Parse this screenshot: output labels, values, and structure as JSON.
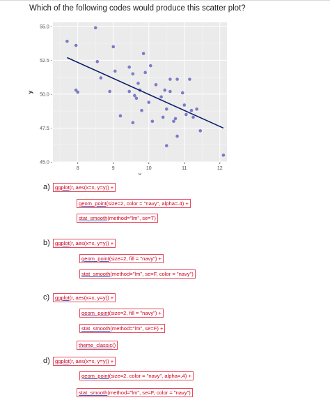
{
  "question": "Which of the following codes would produce this scatter plot?",
  "chart_data": {
    "type": "scatter",
    "xlabel": "x",
    "ylabel": "y",
    "xlim": [
      7.3,
      12.2
    ],
    "ylim": [
      45.0,
      55.3
    ],
    "x_ticks": [
      8,
      9,
      10,
      11,
      12
    ],
    "y_ticks": [
      45.0,
      47.5,
      50.0,
      52.5,
      55.0
    ],
    "y_tick_labels": [
      "45.0 -",
      "47.5 -",
      "50.0 -",
      "52.5 -",
      "55.0 -"
    ],
    "point_color": "#7b7bc7",
    "line_color": "#0b1f6b",
    "panel_color": "#ebebeb",
    "points": [
      [
        7.7,
        53.9
      ],
      [
        7.95,
        53.6
      ],
      [
        7.95,
        50.3
      ],
      [
        8.0,
        50.15
      ],
      [
        8.5,
        54.9
      ],
      [
        8.55,
        52.4
      ],
      [
        8.65,
        51.2
      ],
      [
        8.9,
        50.2
      ],
      [
        9.0,
        53.5
      ],
      [
        9.05,
        51.7
      ],
      [
        9.2,
        48.4
      ],
      [
        9.45,
        52.0
      ],
      [
        9.45,
        50.2
      ],
      [
        9.55,
        47.9
      ],
      [
        9.55,
        51.5
      ],
      [
        9.65,
        49.7
      ],
      [
        9.6,
        49.9
      ],
      [
        9.7,
        50.8
      ],
      [
        9.75,
        50.3
      ],
      [
        9.8,
        48.8
      ],
      [
        9.85,
        53.0
      ],
      [
        9.9,
        51.6
      ],
      [
        10.0,
        49.4
      ],
      [
        10.05,
        52.1
      ],
      [
        10.1,
        48.0
      ],
      [
        10.2,
        50.7
      ],
      [
        10.35,
        49.8
      ],
      [
        10.4,
        48.3
      ],
      [
        10.45,
        50.3
      ],
      [
        10.5,
        48.9
      ],
      [
        10.5,
        46.2
      ],
      [
        10.6,
        50.2
      ],
      [
        10.6,
        51.1
      ],
      [
        10.7,
        48.0
      ],
      [
        10.75,
        48.2
      ],
      [
        10.8,
        51.1
      ],
      [
        10.8,
        46.9
      ],
      [
        10.95,
        50.1
      ],
      [
        11.0,
        49.2
      ],
      [
        11.05,
        48.5
      ],
      [
        11.15,
        51.1
      ],
      [
        11.2,
        48.8
      ],
      [
        11.25,
        48.3
      ],
      [
        11.35,
        48.9
      ],
      [
        11.45,
        47.3
      ],
      [
        12.1,
        45.5
      ]
    ],
    "fit_line": [
      [
        7.7,
        52.7
      ],
      [
        12.1,
        47.5
      ]
    ]
  },
  "options": [
    {
      "letter": "a)",
      "lines": [
        {
          "fn": "ggplot",
          "rest": "(r, aes(x=x, y=y)) +"
        },
        {
          "fn": "geom_point",
          "rest": "(size=2, color = \"navy\", alpha=.4) +"
        },
        {
          "fn": "stat_smooth",
          "rest": "(method=\"lm\", se=T)"
        }
      ]
    },
    {
      "letter": "b)",
      "lines": [
        {
          "fn": "ggplot",
          "rest": "(r, aes(x=x, y=y)) +"
        },
        {
          "fn": "geom_point",
          "rest": "(size=2, fill = \"navy\") +"
        },
        {
          "fn": "stat_smooth",
          "rest": "(method=\"lm\", se=F, color = \"navy\")"
        }
      ]
    },
    {
      "letter": "c)",
      "lines": [
        {
          "fn": "ggplot",
          "rest": "(r, aes(x=x, y=y)) +"
        },
        {
          "fn": "geom_point",
          "rest": "(size=2, fill = \"navy\") +"
        },
        {
          "fn": "stat_smooth",
          "rest": "(method=\"lm\", se=F) +"
        },
        {
          "fn": "theme_classic",
          "rest": "()"
        }
      ]
    },
    {
      "letter": "d)",
      "lines": [
        {
          "fn": "ggplot",
          "rest": "(r, aes(x=x, y=y)) +"
        },
        {
          "fn": "geom_point",
          "rest": "(size=2, color = \"navy\", alpha=.4) +"
        },
        {
          "fn": "stat_smooth",
          "rest": "(method=\"lm\", se=F, color = \"navy\")"
        }
      ]
    }
  ]
}
